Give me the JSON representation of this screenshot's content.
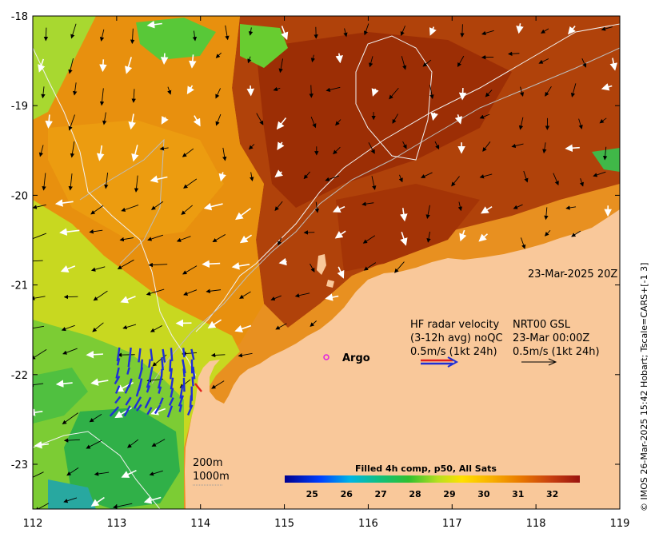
{
  "map": {
    "x_ticks": [
      "112",
      "113",
      "114",
      "115",
      "116",
      "117",
      "118",
      "119"
    ],
    "y_ticks": [
      "-18",
      "-19",
      "-20",
      "-21",
      "-22",
      "-23"
    ],
    "timestamp": "23-Mar-2025 20Z",
    "legend": {
      "line1_left": "HF radar velocity",
      "line1_right": "NRT00 GSL",
      "line2_left": "(3-12h avg) noQC",
      "line2_right": "23-Mar 00:00Z",
      "line3_left": "0.5m/s (1kt 24h)",
      "line3_right": "0.5m/s (1kt 24h)"
    },
    "argo_label": "Argo",
    "contours": {
      "c200": "200m",
      "c1000": "1000m"
    },
    "colorbar": {
      "title": "Filled 4h comp, p50, All Sats",
      "ticks": [
        "25",
        "26",
        "27",
        "28",
        "29",
        "30",
        "31",
        "32"
      ],
      "range": [
        24.2,
        32.8
      ]
    },
    "credit": "© IMOS 26-Mar-2025 15:42 Hobart; Tscale=CARS+[-1 3]",
    "colors": {
      "land": "#f9c89a",
      "hot": "#a63a06",
      "warm": "#e48a12",
      "cool": "#6fcc3a",
      "radar": "#1f2fd6",
      "radar_tip": "#e3201b",
      "argo": "#e020e0"
    }
  }
}
